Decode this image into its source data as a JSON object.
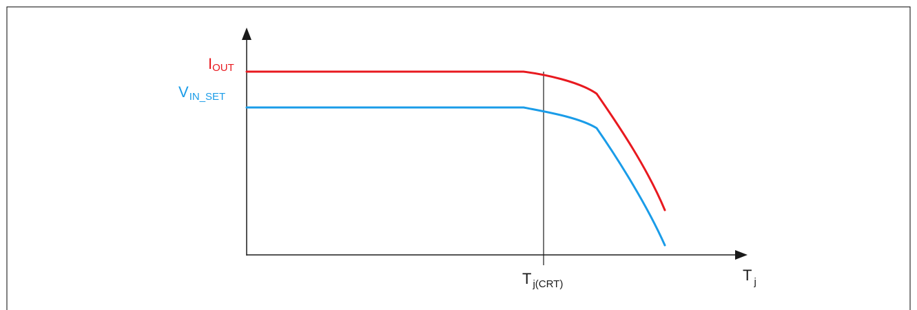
{
  "diagram": {
    "labels": {
      "iout_main": "I",
      "iout_sub": "OUT",
      "vin_main": "V",
      "vin_sub": "IN_SET",
      "tjcrt_main": "T",
      "tjcrt_sub": "j(CRT)",
      "tj_main": "T",
      "tj_sub": "j"
    },
    "colors": {
      "iout": "#e8191f",
      "vin_set": "#1a9ce8",
      "axis": "#1a1a1a",
      "border": "#000000"
    }
  }
}
